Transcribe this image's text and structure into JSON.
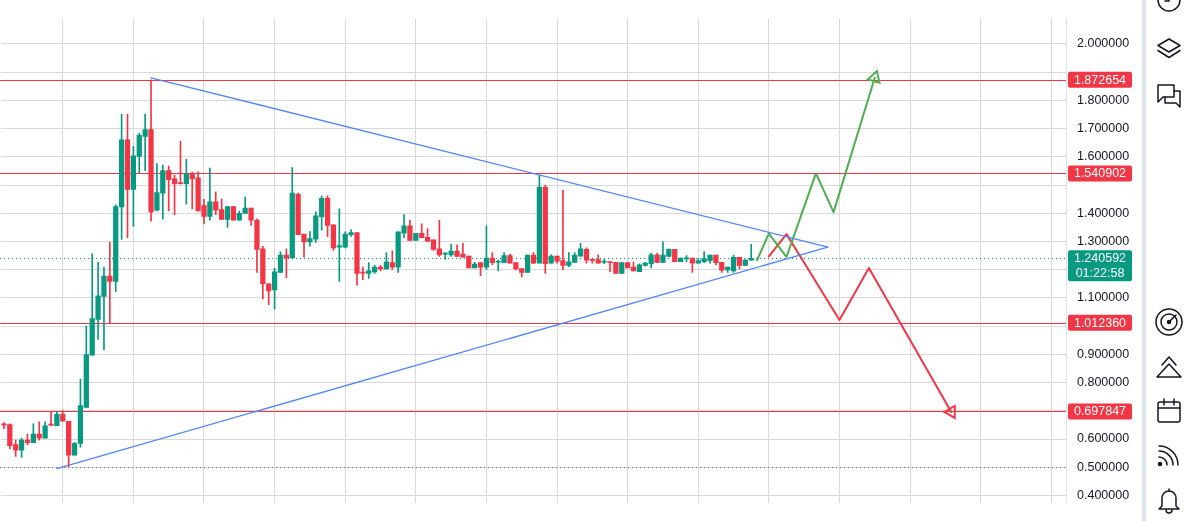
{
  "chart_data": {
    "type": "candlestick",
    "categories": [
      null,
      null,
      null,
      null,
      null,
      null,
      null,
      null,
      null,
      null,
      null,
      null,
      null,
      null,
      null,
      null,
      null,
      null,
      null,
      null,
      null,
      null,
      null,
      null,
      null,
      null,
      null,
      null,
      null,
      null,
      null,
      null,
      null,
      null,
      null,
      null,
      null,
      null,
      null,
      null,
      null,
      null,
      null,
      null,
      null,
      null,
      null,
      null,
      null,
      null,
      null,
      null,
      null,
      null,
      null,
      null,
      null,
      null,
      null,
      null,
      null,
      null,
      null,
      null,
      null,
      null,
      null,
      null,
      null,
      null,
      null,
      null,
      null,
      null,
      null,
      null,
      null,
      null,
      null,
      null,
      null,
      null,
      null,
      null,
      null,
      null,
      null,
      null,
      null,
      null,
      null,
      null,
      null,
      null,
      null,
      null,
      null,
      null,
      null,
      null,
      null,
      null,
      null,
      null,
      null,
      null,
      null,
      null,
      null,
      null,
      null,
      null,
      null,
      null,
      null,
      null,
      null,
      null,
      null,
      null,
      null,
      null,
      null,
      null,
      null,
      null,
      null,
      null,
      null,
      null,
      null,
      null,
      null,
      null,
      null,
      null,
      null,
      null,
      null,
      null,
      null,
      null,
      null,
      null,
      null,
      null,
      null,
      null,
      null,
      null,
      null,
      null,
      null,
      null,
      null,
      null,
      null,
      null,
      null,
      null,
      null,
      null,
      null,
      null,
      null,
      null,
      null,
      null,
      null,
      null,
      null,
      null,
      null,
      null,
      null,
      null,
      null,
      null,
      null,
      null,
      null
    ],
    "ohlc": [
      [
        0.654,
        0.658,
        0.636,
        0.65
      ],
      [
        0.651,
        0.654,
        0.565,
        0.576
      ],
      [
        0.58,
        0.596,
        0.538,
        0.56
      ],
      [
        0.56,
        0.603,
        0.535,
        0.596
      ],
      [
        0.596,
        0.617,
        0.58,
        0.587
      ],
      [
        0.587,
        0.654,
        0.587,
        0.617
      ],
      [
        0.617,
        0.661,
        0.596,
        0.603
      ],
      [
        0.603,
        0.661,
        0.603,
        0.647
      ],
      [
        0.651,
        0.696,
        0.647,
        0.649
      ],
      [
        0.647,
        0.696,
        0.647,
        0.687
      ],
      [
        0.687,
        0.701,
        0.663,
        0.663
      ],
      [
        0.663,
        0.663,
        0.503,
        0.543
      ],
      [
        0.543,
        0.587,
        0.543,
        0.585
      ],
      [
        0.584,
        0.812,
        0.571,
        0.718
      ],
      [
        0.712,
        1.0,
        0.712,
        0.899
      ],
      [
        0.897,
        1.256,
        0.897,
        1.027
      ],
      [
        1.024,
        1.226,
        0.953,
        1.107
      ],
      [
        1.105,
        1.209,
        0.916,
        1.177
      ],
      [
        1.177,
        1.297,
        1.012,
        1.158
      ],
      [
        1.158,
        1.43,
        1.122,
        1.424
      ],
      [
        1.422,
        1.75,
        1.307,
        1.66
      ],
      [
        1.66,
        1.75,
        1.313,
        1.484
      ],
      [
        1.484,
        1.636,
        1.353,
        1.603
      ],
      [
        1.601,
        1.683,
        1.543,
        1.676
      ],
      [
        1.672,
        1.75,
        1.551,
        1.696
      ],
      [
        1.696,
        1.873,
        1.372,
        1.405
      ],
      [
        1.411,
        1.576,
        1.408,
        1.473
      ],
      [
        1.471,
        1.571,
        1.379,
        1.551
      ],
      [
        1.551,
        1.567,
        1.408,
        1.519
      ],
      [
        1.522,
        1.535,
        1.395,
        1.505
      ],
      [
        1.509,
        1.655,
        1.503,
        1.505
      ],
      [
        1.505,
        1.592,
        1.432,
        1.54
      ],
      [
        1.54,
        1.546,
        1.415,
        1.522
      ],
      [
        1.525,
        1.547,
        1.408,
        1.408
      ],
      [
        1.427,
        1.449,
        1.362,
        1.389
      ],
      [
        1.389,
        1.56,
        1.375,
        1.44
      ],
      [
        1.44,
        1.476,
        1.395,
        1.411
      ],
      [
        1.413,
        1.451,
        1.378,
        1.378
      ],
      [
        1.378,
        1.424,
        1.35,
        1.424
      ],
      [
        1.424,
        1.424,
        1.375,
        1.375
      ],
      [
        1.375,
        1.408,
        1.375,
        1.4
      ],
      [
        1.399,
        1.457,
        1.399,
        1.418
      ],
      [
        1.418,
        1.418,
        1.357,
        1.375
      ],
      [
        1.375,
        1.38,
        1.19,
        1.272
      ],
      [
        1.274,
        1.283,
        1.096,
        1.15
      ],
      [
        1.15,
        1.15,
        1.076,
        1.125
      ],
      [
        1.128,
        1.206,
        1.06,
        1.192
      ],
      [
        1.19,
        1.263,
        1.19,
        1.252
      ],
      [
        1.252,
        1.274,
        1.171,
        1.242
      ],
      [
        1.242,
        1.562,
        1.242,
        1.471
      ],
      [
        1.467,
        1.471,
        1.324,
        1.324
      ],
      [
        1.326,
        1.326,
        1.244,
        1.298
      ],
      [
        1.298,
        1.335,
        1.283,
        1.31
      ],
      [
        1.308,
        1.405,
        1.297,
        1.391
      ],
      [
        1.388,
        1.462,
        1.34,
        1.453
      ],
      [
        1.453,
        1.462,
        1.317,
        1.357
      ],
      [
        1.359,
        1.359,
        1.268,
        1.277
      ],
      [
        1.28,
        1.416,
        1.158,
        1.285
      ],
      [
        1.28,
        1.334,
        1.277,
        1.326
      ],
      [
        1.324,
        1.342,
        1.318,
        1.331
      ],
      [
        1.331,
        1.331,
        1.145,
        1.187
      ],
      [
        1.19,
        1.209,
        1.165,
        1.188
      ],
      [
        1.187,
        1.225,
        1.169,
        1.196
      ],
      [
        1.192,
        1.215,
        1.187,
        1.209
      ],
      [
        1.209,
        1.215,
        1.196,
        1.203
      ],
      [
        1.203,
        1.261,
        1.203,
        1.228
      ],
      [
        1.225,
        1.267,
        1.201,
        1.209
      ],
      [
        1.209,
        1.334,
        1.19,
        1.334
      ],
      [
        1.329,
        1.395,
        1.313,
        1.355
      ],
      [
        1.355,
        1.375,
        1.304,
        1.304
      ],
      [
        1.304,
        1.329,
        1.304,
        1.329
      ],
      [
        1.329,
        1.362,
        1.313,
        1.313
      ],
      [
        1.315,
        1.346,
        1.299,
        1.301
      ],
      [
        1.306,
        1.306,
        1.268,
        1.272
      ],
      [
        1.274,
        1.375,
        1.247,
        1.252
      ],
      [
        1.255,
        1.261,
        1.236,
        1.256
      ],
      [
        1.252,
        1.29,
        1.247,
        1.266
      ],
      [
        1.266,
        1.288,
        1.247,
        1.247
      ],
      [
        1.255,
        1.293,
        1.244,
        1.244
      ],
      [
        1.248,
        1.248,
        1.206,
        1.206
      ],
      [
        1.206,
        1.226,
        1.206,
        1.22
      ],
      [
        1.225,
        1.225,
        1.179,
        1.209
      ],
      [
        1.209,
        1.355,
        1.201,
        1.241
      ],
      [
        1.241,
        1.261,
        1.217,
        1.225
      ],
      [
        1.227,
        1.234,
        1.196,
        1.229
      ],
      [
        1.225,
        1.261,
        1.225,
        1.25
      ],
      [
        1.25,
        1.255,
        1.223,
        1.223
      ],
      [
        1.225,
        1.225,
        1.199,
        1.203
      ],
      [
        1.204,
        1.204,
        1.174,
        1.19
      ],
      [
        1.19,
        1.252,
        1.19,
        1.252
      ],
      [
        1.252,
        1.261,
        1.221,
        1.223
      ],
      [
        1.223,
        1.533,
        1.223,
        1.492
      ],
      [
        1.492,
        1.5,
        1.187,
        1.221
      ],
      [
        1.223,
        1.253,
        1.223,
        1.248
      ],
      [
        1.248,
        1.248,
        1.223,
        1.23
      ],
      [
        1.232,
        1.481,
        1.199,
        1.215
      ],
      [
        1.215,
        1.261,
        1.21,
        1.228
      ],
      [
        1.226,
        1.261,
        1.226,
        1.252
      ],
      [
        1.248,
        1.293,
        1.248,
        1.274
      ],
      [
        1.272,
        1.277,
        1.223,
        1.234
      ],
      [
        1.235,
        1.239,
        1.223,
        1.233
      ],
      [
        1.236,
        1.253,
        1.223,
        1.223
      ],
      [
        1.227,
        1.236,
        1.221,
        1.229
      ],
      [
        1.227,
        1.227,
        1.193,
        1.225
      ],
      [
        1.226,
        1.226,
        1.187,
        1.187
      ],
      [
        1.187,
        1.225,
        1.187,
        1.225
      ],
      [
        1.225,
        1.225,
        1.206,
        1.206
      ],
      [
        1.209,
        1.228,
        1.196,
        1.196
      ],
      [
        1.193,
        1.221,
        1.193,
        1.217
      ],
      [
        1.215,
        1.226,
        1.212,
        1.223
      ],
      [
        1.221,
        1.258,
        1.206,
        1.253
      ],
      [
        1.253,
        1.258,
        1.225,
        1.226
      ],
      [
        1.226,
        1.299,
        1.226,
        1.252
      ],
      [
        1.247,
        1.274,
        1.247,
        1.272
      ],
      [
        1.272,
        1.272,
        1.228,
        1.228
      ],
      [
        1.228,
        1.241,
        1.228,
        1.241
      ],
      [
        1.238,
        1.25,
        1.228,
        1.24
      ],
      [
        1.241,
        1.241,
        1.19,
        1.223
      ],
      [
        1.223,
        1.239,
        1.223,
        1.232
      ],
      [
        1.228,
        1.264,
        1.225,
        1.239
      ],
      [
        1.232,
        1.252,
        1.223,
        1.252
      ],
      [
        1.252,
        1.252,
        1.217,
        1.225
      ],
      [
        1.226,
        1.226,
        1.19,
        1.198
      ],
      [
        1.199,
        1.209,
        1.19,
        1.209
      ],
      [
        1.196,
        1.252,
        1.19,
        1.244
      ],
      [
        1.244,
        1.244,
        1.203,
        1.215
      ],
      [
        1.215,
        1.236,
        1.215,
        1.234
      ],
      [
        1.234,
        1.29,
        1.234,
        1.2406
      ],
      null,
      null,
      null,
      null,
      null,
      null,
      null,
      null,
      null,
      null,
      null,
      null,
      null,
      null,
      null,
      null,
      null,
      null,
      null,
      null,
      null,
      null,
      null,
      null,
      null,
      null,
      null,
      null,
      null,
      null,
      null,
      null,
      null,
      null,
      null,
      null,
      null,
      null,
      null,
      null,
      null,
      null,
      null,
      null,
      null,
      null,
      null,
      null,
      null,
      null,
      null,
      null,
      null
    ],
    "colors": [
      "#f23645",
      "#f23645",
      "#f23645",
      "#089981",
      "#f23645",
      "#089981",
      "#f23645",
      "#089981",
      "#f23645",
      "#089981",
      "#f23645",
      "#f23645",
      "#089981",
      "#089981",
      "#089981",
      "#089981",
      "#089981",
      "#089981",
      "#f23645",
      "#089981",
      "#089981",
      "#f23645",
      "#089981",
      "#089981",
      "#089981",
      "#f23645",
      "#089981",
      "#089981",
      "#f23645",
      "#f23645",
      "#f23645",
      "#089981",
      "#f23645",
      "#f23645",
      "#f23645",
      "#089981",
      "#f23645",
      "#f23645",
      "#089981",
      "#f23645",
      "#089981",
      "#089981",
      "#f23645",
      "#f23645",
      "#f23645",
      "#f23645",
      "#089981",
      "#089981",
      "#f23645",
      "#089981",
      "#f23645",
      "#f23645",
      "#089981",
      "#089981",
      "#089981",
      "#f23645",
      "#f23645",
      "#089981",
      "#089981",
      "#089981",
      "#f23645",
      "#f23645",
      "#089981",
      "#089981",
      "#f23645",
      "#089981",
      "#f23645",
      "#089981",
      "#089981",
      "#f23645",
      "#089981",
      "#f23645",
      "#f23645",
      "#f23645",
      "#f23645",
      "#089981",
      "#089981",
      "#f23645",
      "#f23645",
      "#f23645",
      "#089981",
      "#f23645",
      "#089981",
      "#f23645",
      "#089981",
      "#089981",
      "#f23645",
      "#f23645",
      "#f23645",
      "#089981",
      "#f23645",
      "#089981",
      "#f23645",
      "#089981",
      "#f23645",
      "#f23645",
      "#089981",
      "#089981",
      "#089981",
      "#f23645",
      "#f23645",
      "#f23645",
      "#089981",
      "#f23645",
      "#f23645",
      "#089981",
      "#f23645",
      "#f23645",
      "#089981",
      "#089981",
      "#089981",
      "#f23645",
      "#089981",
      "#089981",
      "#f23645",
      "#089981",
      "#089981",
      "#f23645",
      "#089981",
      "#089981",
      "#089981",
      "#f23645",
      "#f23645",
      "#089981",
      "#089981",
      "#f23645",
      "#089981",
      "#089981",
      null,
      null,
      null,
      null,
      null,
      null,
      null,
      null,
      null,
      null,
      null,
      null,
      null,
      null,
      null,
      null,
      null,
      null,
      null,
      null,
      null,
      null,
      null,
      null,
      null,
      null,
      null,
      null,
      null,
      null,
      null,
      null,
      null,
      null,
      null,
      null,
      null,
      null,
      null,
      null,
      null,
      null,
      null,
      null,
      null,
      null,
      null,
      null,
      null,
      null,
      null,
      null,
      null
    ],
    "series": [
      {
        "type": "line",
        "color": "#4f86f7",
        "values": [
          null,
          null,
          null,
          null,
          null,
          null,
          null,
          null,
          null,
          null,
          null,
          null,
          null,
          null,
          null,
          null,
          null,
          null,
          null,
          null,
          null,
          null,
          null,
          null,
          null,
          1.88,
          null,
          null,
          null,
          null,
          null,
          null,
          null,
          null,
          null,
          null,
          null,
          null,
          null,
          null,
          null,
          null,
          null,
          null,
          null,
          null,
          null,
          null,
          null,
          null,
          null,
          null,
          null,
          null,
          null,
          null,
          null,
          null,
          null,
          null,
          null,
          null,
          null,
          null,
          null,
          null,
          null,
          null,
          null,
          null,
          null,
          null,
          null,
          null,
          null,
          null,
          null,
          null,
          null,
          null,
          null,
          null,
          null,
          null,
          null,
          null,
          null,
          null,
          null,
          null,
          null,
          null,
          null,
          null,
          null,
          null,
          null,
          null,
          null,
          null,
          null,
          null,
          null,
          null,
          null,
          null,
          null,
          null,
          null,
          null,
          null,
          null,
          null,
          null,
          null,
          null,
          null,
          null,
          null,
          null,
          null,
          null,
          null,
          null,
          null,
          null,
          null,
          null,
          null,
          null,
          null,
          null,
          null,
          null,
          null,
          null,
          null,
          null,
          null,
          null,
          1.28,
          null,
          null,
          null,
          null,
          null,
          null,
          null,
          null,
          null,
          null,
          null,
          null,
          null,
          null,
          null,
          null,
          null,
          null,
          null,
          null,
          null,
          null,
          null,
          null,
          null,
          null,
          null,
          null,
          null,
          null,
          null,
          null,
          null,
          null,
          null,
          null,
          null,
          null,
          null,
          null
        ]
      },
      {
        "type": "line",
        "color": "#4f86f7",
        "values": [
          null,
          null,
          null,
          null,
          null,
          null,
          null,
          null,
          null,
          0.495,
          null,
          null,
          null,
          null,
          null,
          null,
          null,
          null,
          null,
          null,
          null,
          null,
          null,
          null,
          null,
          null,
          null,
          null,
          null,
          null,
          null,
          null,
          null,
          null,
          null,
          null,
          null,
          null,
          null,
          null,
          null,
          null,
          null,
          null,
          null,
          null,
          null,
          null,
          null,
          null,
          null,
          null,
          null,
          null,
          null,
          null,
          null,
          null,
          null,
          null,
          null,
          null,
          null,
          null,
          null,
          null,
          null,
          null,
          null,
          null,
          null,
          null,
          null,
          null,
          null,
          null,
          null,
          null,
          null,
          null,
          null,
          null,
          null,
          null,
          null,
          null,
          null,
          null,
          null,
          null,
          null,
          null,
          null,
          null,
          null,
          null,
          null,
          null,
          null,
          null,
          null,
          null,
          null,
          null,
          null,
          null,
          null,
          null,
          null,
          null,
          null,
          null,
          null,
          null,
          null,
          null,
          null,
          null,
          null,
          null,
          null,
          null,
          null,
          null,
          null,
          null,
          null,
          null,
          null,
          null,
          null,
          null,
          null,
          null,
          null,
          null,
          null,
          null,
          null,
          null,
          1.28,
          null,
          null,
          null,
          null,
          null,
          null,
          null,
          null,
          null,
          null,
          null,
          null,
          null,
          null,
          null,
          null,
          null,
          null,
          null,
          null,
          null,
          null,
          null,
          null,
          null,
          null,
          null,
          null,
          null,
          null,
          null,
          null,
          null,
          null,
          null,
          null,
          null,
          null,
          null,
          null
        ]
      },
      {
        "type": "line",
        "color": "#4caf50",
        "values": [
          null,
          null,
          null,
          null,
          null,
          null,
          null,
          null,
          null,
          null,
          null,
          null,
          null,
          null,
          null,
          null,
          null,
          null,
          null,
          null,
          null,
          null,
          null,
          null,
          null,
          null,
          null,
          null,
          null,
          null,
          null,
          null,
          null,
          null,
          null,
          null,
          null,
          null,
          null,
          null,
          null,
          null,
          null,
          null,
          null,
          null,
          null,
          null,
          null,
          null,
          null,
          null,
          null,
          null,
          null,
          null,
          null,
          null,
          null,
          null,
          null,
          null,
          null,
          null,
          null,
          null,
          null,
          null,
          null,
          null,
          null,
          null,
          null,
          null,
          null,
          null,
          null,
          null,
          null,
          null,
          null,
          null,
          null,
          null,
          null,
          null,
          null,
          null,
          null,
          null,
          null,
          null,
          null,
          null,
          null,
          null,
          null,
          null,
          null,
          null,
          null,
          null,
          null,
          null,
          null,
          null,
          null,
          null,
          null,
          null,
          null,
          null,
          null,
          null,
          null,
          null,
          null,
          null,
          null,
          null,
          null,
          null,
          null,
          null,
          null,
          null,
          null,
          null,
          1.234,
          null,
          1.328,
          null,
          null,
          1.245,
          null,
          null,
          null,
          null,
          1.541,
          null,
          null,
          1.404,
          null,
          null,
          null,
          null,
          null,
          null,
          1.88,
          null,
          null,
          null,
          null,
          null,
          null,
          null,
          null,
          null,
          null,
          null,
          null,
          null,
          null,
          null,
          null,
          null,
          null,
          null,
          null,
          null,
          null,
          null,
          null,
          null,
          null,
          null,
          null,
          null,
          null,
          null,
          null
        ]
      },
      {
        "type": "line",
        "color": "#f23645",
        "values": [
          null,
          null,
          null,
          null,
          null,
          null,
          null,
          null,
          null,
          null,
          null,
          null,
          null,
          null,
          null,
          null,
          null,
          null,
          null,
          null,
          null,
          null,
          null,
          null,
          null,
          null,
          null,
          null,
          null,
          null,
          null,
          null,
          null,
          null,
          null,
          null,
          null,
          null,
          null,
          null,
          null,
          null,
          null,
          null,
          null,
          null,
          null,
          null,
          null,
          null,
          null,
          null,
          null,
          null,
          null,
          null,
          null,
          null,
          null,
          null,
          null,
          null,
          null,
          null,
          null,
          null,
          null,
          null,
          null,
          null,
          null,
          null,
          null,
          null,
          null,
          null,
          null,
          null,
          null,
          null,
          null,
          null,
          null,
          null,
          null,
          null,
          null,
          null,
          null,
          null,
          null,
          null,
          null,
          null,
          null,
          null,
          null,
          null,
          null,
          null,
          null,
          null,
          null,
          null,
          null,
          null,
          null,
          null,
          null,
          null,
          null,
          null,
          null,
          null,
          null,
          null,
          null,
          null,
          null,
          null,
          null,
          null,
          null,
          null,
          null,
          null,
          null,
          null,
          null,
          null,
          1.247,
          null,
          null,
          1.326,
          null,
          null,
          null,
          null,
          null,
          null,
          null,
          null,
          1.022,
          null,
          null,
          null,
          null,
          1.206,
          null,
          null,
          null,
          null,
          null,
          null,
          null,
          null,
          null,
          null,
          null,
          null,
          null,
          0.696,
          null,
          null,
          null,
          null,
          null,
          null,
          null,
          null,
          null,
          null,
          null,
          null,
          null,
          null,
          null,
          null,
          null,
          null,
          null
        ]
      }
    ],
    "ylim": [
      0.375,
      2.09
    ],
    "yticks": [
      {
        "value": 0.4,
        "label": "0.400000"
      },
      {
        "value": 0.5,
        "label": "0.500000"
      },
      {
        "value": 0.6,
        "label": "0.600000"
      },
      {
        "value": 0.7,
        "label": null
      },
      {
        "value": 0.8,
        "label": "0.800000"
      },
      {
        "value": 0.9,
        "label": "0.900000"
      },
      {
        "value": 1.0,
        "label": null
      },
      {
        "value": 1.1,
        "label": "1.100000"
      },
      {
        "value": 1.2,
        "label": null
      },
      {
        "value": 1.3,
        "label": "1.300000"
      },
      {
        "value": 1.4,
        "label": "1.400000"
      },
      {
        "value": 1.5,
        "label": null
      },
      {
        "value": 1.6,
        "label": "1.600000"
      },
      {
        "value": 1.7,
        "label": "1.700000"
      },
      {
        "value": 1.8,
        "label": "1.800000"
      },
      {
        "value": 1.9,
        "label": null
      },
      {
        "value": 2.0,
        "label": "2.000000"
      }
    ],
    "ref_lines": [
      {
        "axis": "y",
        "value": 1.872654,
        "label": "1.872654",
        "color": "#f23645"
      },
      {
        "axis": "y",
        "value": 1.540902,
        "label": "1.540902",
        "color": "#f23645"
      },
      {
        "axis": "y",
        "value": 1.01236,
        "label": "1.012360",
        "color": "#f23645"
      },
      {
        "axis": "y",
        "value": 0.697847,
        "label": "0.697847",
        "color": "#f23645"
      },
      {
        "axis": "y",
        "value": 1.240592,
        "label": "1.240592\n01:22:58",
        "color": "#089981",
        "line_style": "dotted"
      },
      {
        "axis": "y",
        "value": 0.5,
        "color": "#787b86",
        "line_style": "dotted"
      }
    ],
    "grid": true,
    "tick_labels": "y"
  }
}
